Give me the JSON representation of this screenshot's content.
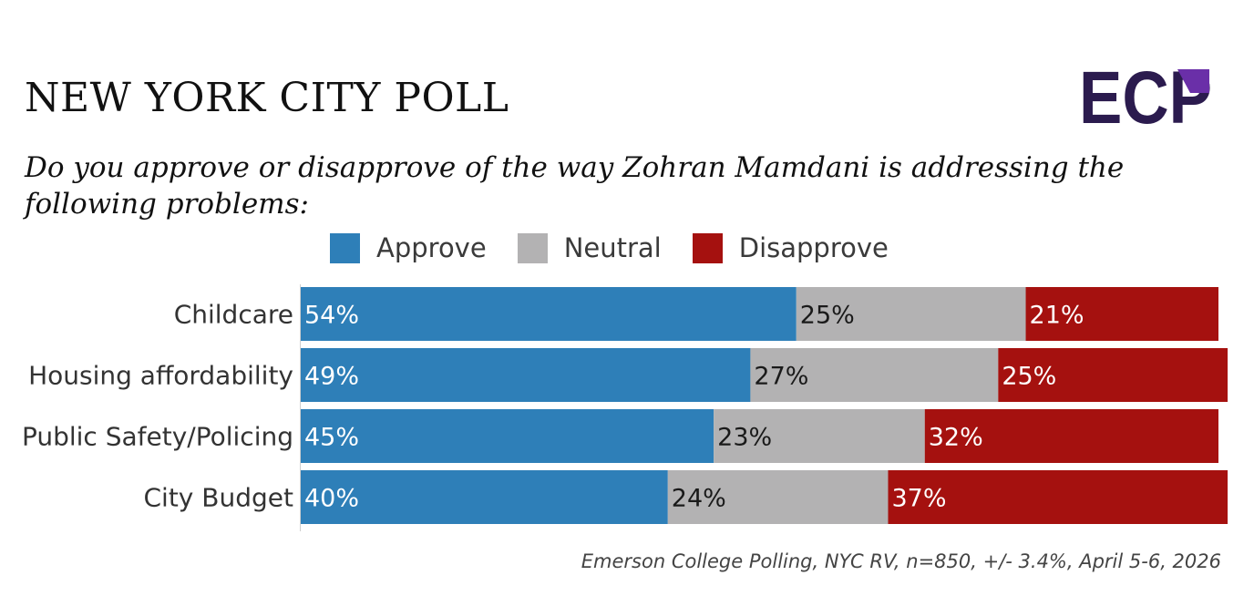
{
  "title": "NEW YORK CITY POLL",
  "subtitle": "Do you approve or disapprove of the way Zohran Mamdani is addressing the following problems:",
  "logo": {
    "text": "ECP",
    "colors": {
      "dark": "#2b1b4e",
      "accent": "#6a2fa8"
    }
  },
  "legend": [
    {
      "label": "Approve",
      "color": "#2e7fb8"
    },
    {
      "label": "Neutral",
      "color": "#b3b2b3"
    },
    {
      "label": "Disapprove",
      "color": "#a5110f"
    }
  ],
  "chart_data": {
    "type": "bar",
    "orientation": "horizontal",
    "stacked": true,
    "normalized_to": 100,
    "categories": [
      "Childcare",
      "Housing affordability",
      "Public Safety/Policing",
      "City Budget"
    ],
    "series": [
      {
        "name": "Approve",
        "color": "#2e7fb8",
        "values": [
          54,
          49,
          45,
          40
        ]
      },
      {
        "name": "Neutral",
        "color": "#b3b2b3",
        "values": [
          25,
          27,
          23,
          24
        ]
      },
      {
        "name": "Disapprove",
        "color": "#a5110f",
        "values": [
          21,
          25,
          32,
          37
        ]
      }
    ],
    "value_suffix": "%",
    "title": "NEW YORK CITY POLL",
    "xlabel": "",
    "ylabel": "",
    "legend_position": "top"
  },
  "source": "Emerson College Polling, NYC RV, n=850, +/- 3.4%, April 5-6, 2026"
}
